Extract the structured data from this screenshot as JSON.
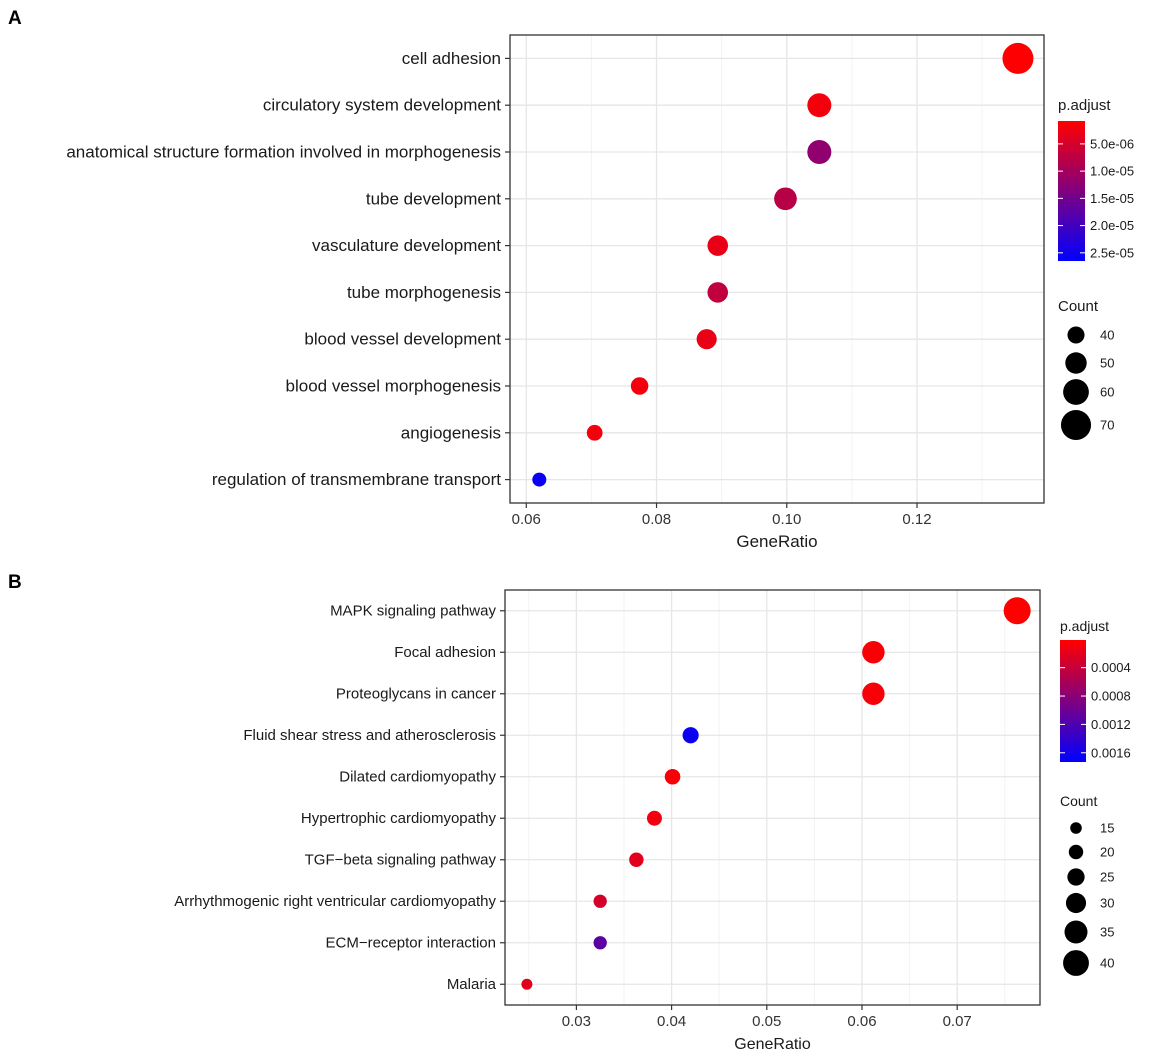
{
  "chart_data": [
    {
      "type": "scatter",
      "panel_label": "A",
      "xlabel": "GeneRatio",
      "xlim": [
        0.0575,
        0.1395
      ],
      "xticks": [
        0.06,
        0.08,
        0.1,
        0.12
      ],
      "xtick_labels": [
        "0.06",
        "0.08",
        "0.10",
        "0.12"
      ],
      "grid": true,
      "terms": [
        {
          "label": "cell adhesion",
          "gene_ratio": 0.1355,
          "count": 72,
          "p_adjust": 1e-06
        },
        {
          "label": "circulatory system development",
          "gene_ratio": 0.105,
          "count": 56,
          "p_adjust": 2e-06
        },
        {
          "label": "anatomical structure formation involved in morphogenesis",
          "gene_ratio": 0.105,
          "count": 56,
          "p_adjust": 1.2e-05
        },
        {
          "label": "tube development",
          "gene_ratio": 0.0998,
          "count": 53,
          "p_adjust": 8e-06
        },
        {
          "label": "vasculature development",
          "gene_ratio": 0.0894,
          "count": 48,
          "p_adjust": 3e-06
        },
        {
          "label": "tube morphogenesis",
          "gene_ratio": 0.0894,
          "count": 48,
          "p_adjust": 7e-06
        },
        {
          "label": "blood vessel development",
          "gene_ratio": 0.0877,
          "count": 47,
          "p_adjust": 3e-06
        },
        {
          "label": "blood vessel morphogenesis",
          "gene_ratio": 0.0774,
          "count": 41,
          "p_adjust": 2e-06
        },
        {
          "label": "angiogenesis",
          "gene_ratio": 0.0705,
          "count": 37,
          "p_adjust": 2e-06
        },
        {
          "label": "regulation of transmembrane transport",
          "gene_ratio": 0.062,
          "count": 33,
          "p_adjust": 2.55e-05
        }
      ],
      "color_legend": {
        "title": "p.adjust",
        "min": 8e-07,
        "max": 2.65e-05,
        "low_color": "#ff0000",
        "high_color": "#0000ff",
        "ticks": [
          5e-06,
          1e-05,
          1.5e-05,
          2e-05,
          2.5e-05
        ],
        "tick_labels": [
          "5.0e-06",
          "1.0e-05",
          "1.5e-05",
          "2.0e-05",
          "2.5e-05"
        ]
      },
      "size_legend": {
        "title": "Count",
        "values": [
          40,
          50,
          60,
          70
        ],
        "labels": [
          "40",
          "50",
          "60",
          "70"
        ]
      },
      "size_range": [
        33,
        72
      ],
      "legend_position": "right"
    },
    {
      "type": "scatter",
      "panel_label": "B",
      "xlabel": "GeneRatio",
      "xlim": [
        0.0225,
        0.0787
      ],
      "xticks": [
        0.03,
        0.04,
        0.05,
        0.06,
        0.07
      ],
      "xtick_labels": [
        "0.03",
        "0.04",
        "0.05",
        "0.06",
        "0.07"
      ],
      "grid": true,
      "terms": [
        {
          "label": "MAPK signaling pathway",
          "gene_ratio": 0.0763,
          "count": 42,
          "p_adjust": 1e-05
        },
        {
          "label": "Focal adhesion",
          "gene_ratio": 0.0612,
          "count": 34,
          "p_adjust": 5e-05
        },
        {
          "label": "Proteoglycans in cancer",
          "gene_ratio": 0.0612,
          "count": 34,
          "p_adjust": 6e-05
        },
        {
          "label": "Fluid shear stress and atherosclerosis",
          "gene_ratio": 0.042,
          "count": 23,
          "p_adjust": 0.00165
        },
        {
          "label": "Dilated cardiomyopathy",
          "gene_ratio": 0.0401,
          "count": 22,
          "p_adjust": 5e-05
        },
        {
          "label": "Hypertrophic cardiomyopathy",
          "gene_ratio": 0.0382,
          "count": 21,
          "p_adjust": 0.0001
        },
        {
          "label": "TGF−beta signaling pathway",
          "gene_ratio": 0.0363,
          "count": 20,
          "p_adjust": 0.0002
        },
        {
          "label": "Arrhythmogenic right ventricular cardiomyopathy",
          "gene_ratio": 0.0325,
          "count": 18,
          "p_adjust": 0.0003
        },
        {
          "label": "ECM−receptor interaction",
          "gene_ratio": 0.0325,
          "count": 18,
          "p_adjust": 0.0011
        },
        {
          "label": "Malaria",
          "gene_ratio": 0.0248,
          "count": 14,
          "p_adjust": 0.0002
        }
      ],
      "color_legend": {
        "title": "p.adjust",
        "min": 1e-05,
        "max": 0.00173,
        "low_color": "#ff0000",
        "high_color": "#0000ff",
        "ticks": [
          0.0004,
          0.0008,
          0.0012,
          0.0016
        ],
        "tick_labels": [
          "0.0004",
          "0.0008",
          "0.0012",
          "0.0016"
        ]
      },
      "size_legend": {
        "title": "Count",
        "values": [
          15,
          20,
          25,
          30,
          35,
          40
        ],
        "labels": [
          "15",
          "20",
          "25",
          "30",
          "35",
          "40"
        ]
      },
      "size_range": [
        14,
        42
      ],
      "legend_position": "right"
    }
  ]
}
